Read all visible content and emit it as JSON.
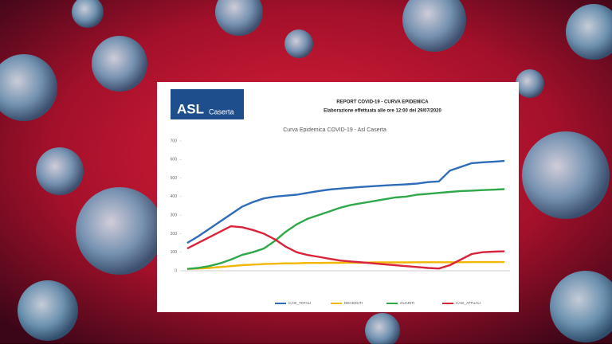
{
  "header": {
    "logo_top": "ASL",
    "logo_bottom": "Caserta",
    "title": "REPORT COVID-19 - CURVA EPIDEMICA",
    "subtitle": "Elaborazione effettuata alle ore 12:00 del 29/07/2020"
  },
  "chart_data": {
    "type": "line",
    "title": "Curva Epidemica COVID-19 - Asl Caserta",
    "categories": [
      null,
      null,
      null,
      null,
      null,
      null,
      null,
      null,
      null,
      null,
      null,
      null,
      null,
      null,
      null,
      null,
      null,
      null,
      null,
      null,
      null,
      null,
      null,
      null,
      null,
      null,
      null,
      null,
      null,
      null
    ],
    "ylim": [
      0,
      700
    ],
    "yticks": [
      0,
      100,
      200,
      300,
      400,
      500,
      600,
      700
    ],
    "grid": false,
    "legend": "bottom",
    "series": [
      {
        "name": "CASI_TOTALI",
        "color": "#2e6bb8",
        "values": [
          150,
          185,
          225,
          265,
          305,
          345,
          370,
          390,
          400,
          405,
          410,
          420,
          430,
          438,
          443,
          448,
          452,
          456,
          460,
          463,
          466,
          470,
          478,
          482,
          540,
          560,
          580,
          585,
          588,
          592
        ]
      },
      {
        "name": "DECEDUTI",
        "color": "#f2b705",
        "values": [
          10,
          12,
          15,
          20,
          25,
          30,
          33,
          36,
          38,
          40,
          40,
          42,
          42,
          43,
          43,
          44,
          44,
          45,
          45,
          45,
          45,
          46,
          46,
          46,
          46,
          46,
          47,
          47,
          47,
          47
        ]
      },
      {
        "name": "GUARITI",
        "color": "#2ea84a",
        "values": [
          10,
          15,
          25,
          40,
          60,
          85,
          100,
          120,
          160,
          210,
          250,
          280,
          300,
          320,
          340,
          355,
          365,
          375,
          385,
          395,
          400,
          410,
          415,
          420,
          425,
          430,
          432,
          435,
          437,
          440
        ]
      },
      {
        "name": "CASI_ATTUALI",
        "color": "#d9233a",
        "values": [
          120,
          150,
          180,
          210,
          240,
          235,
          220,
          200,
          170,
          130,
          100,
          85,
          75,
          65,
          55,
          50,
          45,
          40,
          35,
          30,
          25,
          20,
          15,
          12,
          30,
          60,
          90,
          100,
          103,
          105
        ]
      }
    ]
  }
}
